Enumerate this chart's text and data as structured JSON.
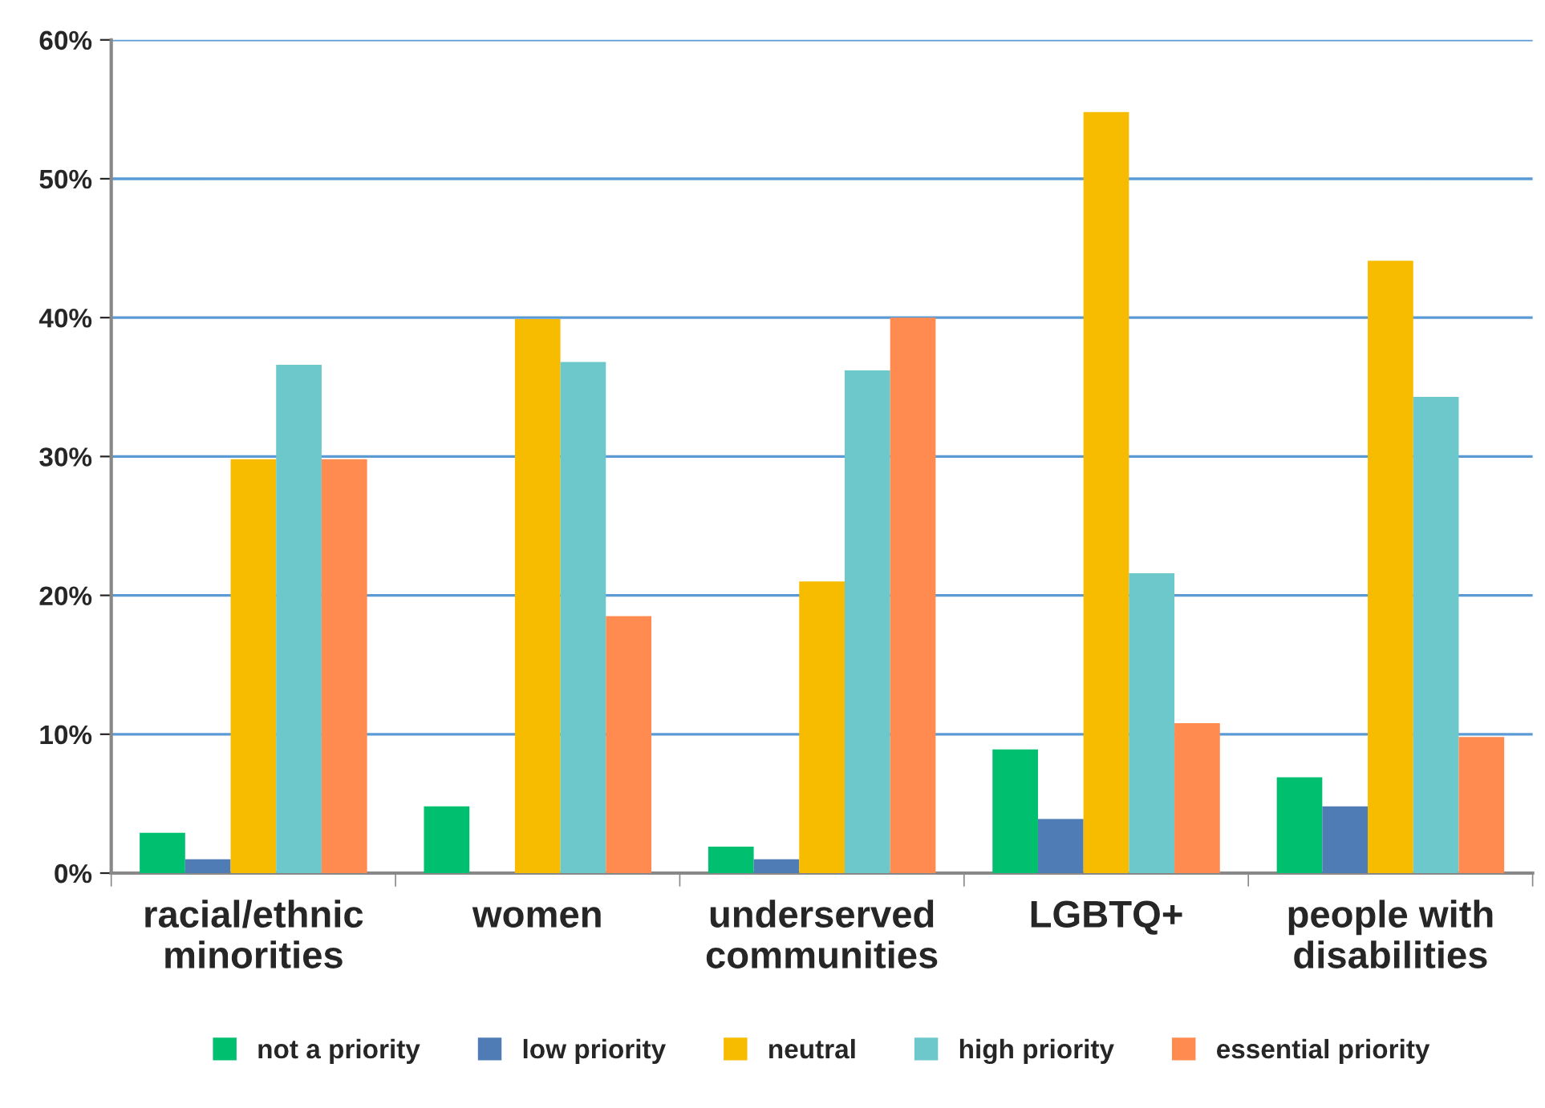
{
  "chart_data": {
    "type": "bar",
    "categories": [
      "racial/ethnic minorities",
      "women",
      "underserved communities",
      "LGBTQ+",
      "people with disabilities"
    ],
    "series": [
      {
        "name": "not a priority",
        "color": "#00bf6f",
        "values": [
          2.9,
          4.8,
          1.9,
          8.9,
          6.9
        ]
      },
      {
        "name": "low priority",
        "color": "#507cb6",
        "values": [
          1.0,
          null,
          1.0,
          3.9,
          4.8
        ]
      },
      {
        "name": "neutral",
        "color": "#f7bc00",
        "values": [
          29.8,
          39.9,
          21.0,
          54.8,
          44.1
        ]
      },
      {
        "name": "high priority",
        "color": "#6cc8cb",
        "values": [
          36.6,
          36.8,
          36.2,
          21.6,
          34.3
        ]
      },
      {
        "name": "essential priority",
        "color": "#ff8b50",
        "values": [
          29.8,
          18.5,
          40.0,
          10.8,
          9.8
        ]
      }
    ],
    "ylim": [
      0,
      60
    ],
    "yticks": [
      {
        "value": 0,
        "label": "0%"
      },
      {
        "value": 10,
        "label": "10%"
      },
      {
        "value": 20,
        "label": "20%"
      },
      {
        "value": 30,
        "label": "30%"
      },
      {
        "value": 40,
        "label": "40%"
      },
      {
        "value": 50,
        "label": "50%"
      },
      {
        "value": 60,
        "label": "60%"
      }
    ],
    "grid": "y",
    "legend": "bottom"
  }
}
